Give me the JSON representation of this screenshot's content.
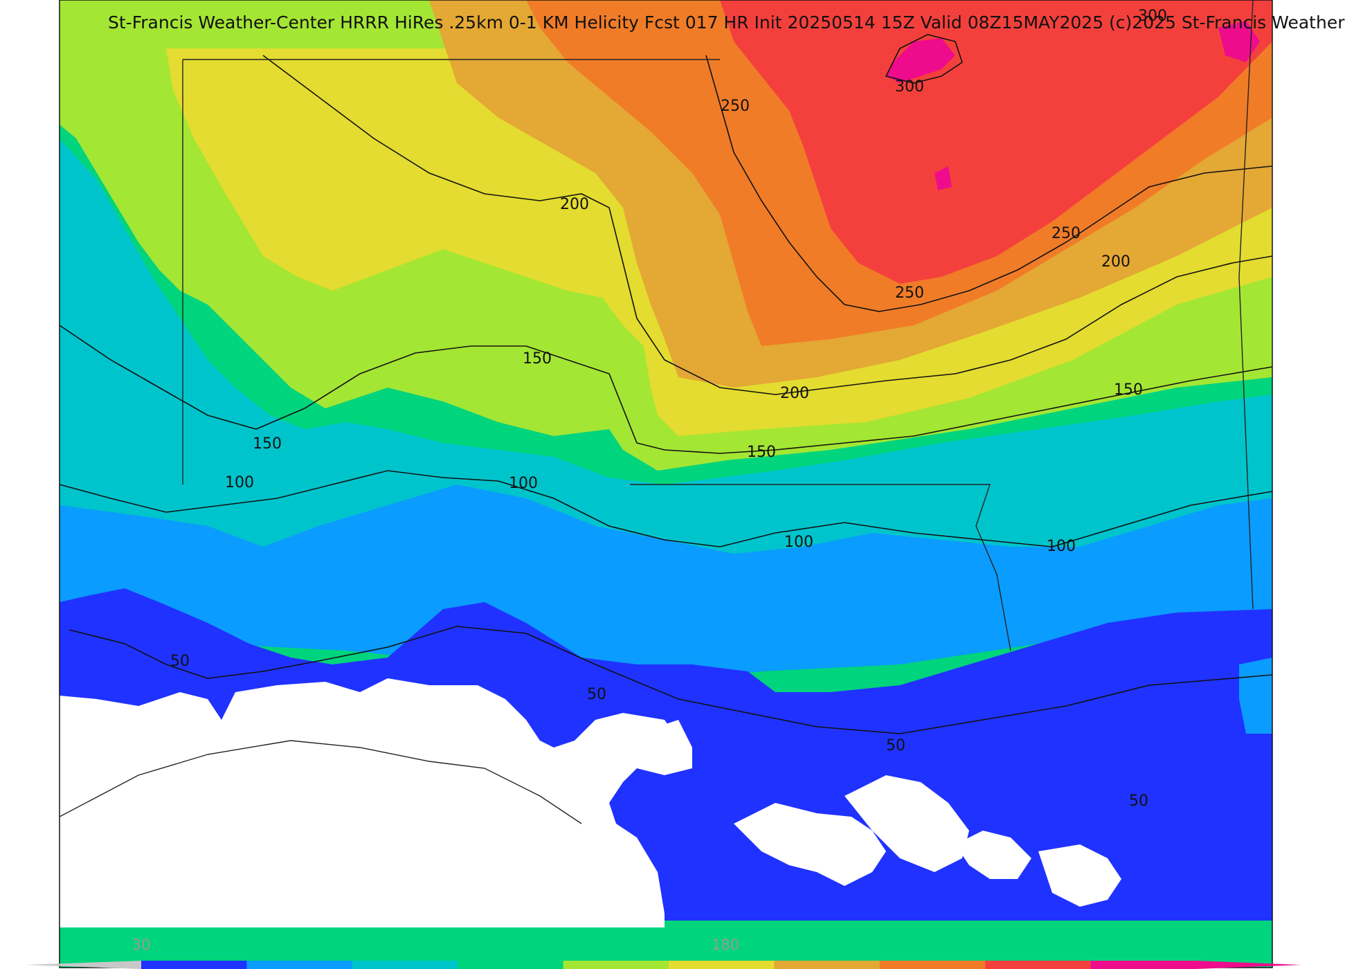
{
  "title": "St-Francis Weather-Center HRRR HiRes .25km 0-1 KM Helicity Fcst 017 HR Init 20250514 15Z  Valid 08Z15MAY2025   (c)2025 St-Francis Weather",
  "contour_labels": [
    {
      "id": "c300a",
      "text": "300"
    },
    {
      "id": "c300b",
      "text": "300"
    },
    {
      "id": "c250a",
      "text": "250"
    },
    {
      "id": "c250b",
      "text": "250"
    },
    {
      "id": "c250c",
      "text": "250"
    },
    {
      "id": "c200a",
      "text": "200"
    },
    {
      "id": "c200b",
      "text": "200"
    },
    {
      "id": "c200c",
      "text": "200"
    },
    {
      "id": "c150a",
      "text": "150"
    },
    {
      "id": "c150b",
      "text": "150"
    },
    {
      "id": "c150c",
      "text": "150"
    },
    {
      "id": "c150d",
      "text": "150"
    },
    {
      "id": "c100a",
      "text": "100"
    },
    {
      "id": "c100b",
      "text": "100"
    },
    {
      "id": "c100c",
      "text": "100"
    },
    {
      "id": "c100d",
      "text": "100"
    },
    {
      "id": "c50a",
      "text": "50"
    },
    {
      "id": "c50b",
      "text": "50"
    },
    {
      "id": "c50c",
      "text": "50"
    },
    {
      "id": "c50d",
      "text": "50"
    }
  ],
  "colorbar": {
    "tick_labels": [
      "30",
      "180"
    ],
    "colors": [
      "#2032ff",
      "#0a9cff",
      "#00c4cc",
      "#00d47c",
      "#a4e634",
      "#e4dc30",
      "#e4a834",
      "#f07c28",
      "#f4403c",
      "#ee0c8c"
    ]
  },
  "fill_colors": {
    "band_50": "#2032ff",
    "band_75": "#0a9cff",
    "band_100": "#00c4cc",
    "band_125": "#00d47c",
    "band_150": "#a4e634",
    "band_175": "#e4dc30",
    "band_200": "#e4a834",
    "band_225": "#f07c28",
    "band_250": "#f4403c",
    "band_300": "#ee0c8c",
    "no_data": "#ffffff"
  }
}
